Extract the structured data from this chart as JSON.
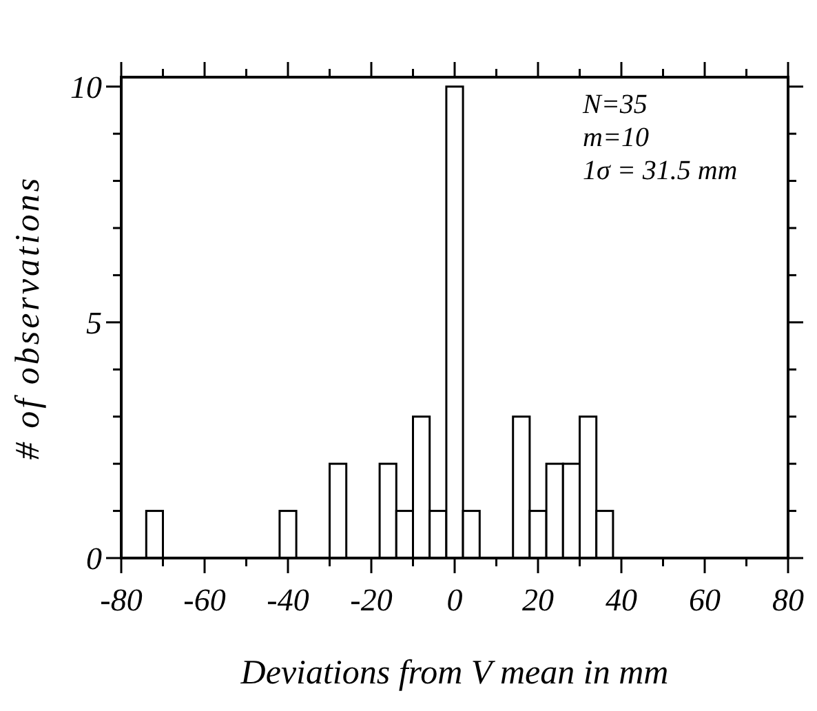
{
  "chart_data": {
    "type": "histogram",
    "xlabel": "Deviations from V mean in mm",
    "ylabel": "# of observations",
    "annotations": [
      "N=35",
      "m=10",
      "1σ = 31.5 mm"
    ],
    "bins": [
      -74,
      -70,
      -66,
      -62,
      -58,
      -54,
      -50,
      -46,
      -42,
      -38,
      -34,
      -30,
      -26,
      -22,
      -18,
      -14,
      -10,
      -6,
      -2,
      2,
      6,
      10,
      14,
      18,
      22,
      26,
      30,
      34,
      38
    ],
    "values": [
      1,
      0,
      0,
      0,
      0,
      0,
      0,
      0,
      1,
      0,
      0,
      2,
      0,
      0,
      2,
      1,
      3,
      1,
      10,
      1,
      0,
      0,
      3,
      1,
      2,
      2,
      3,
      1
    ],
    "color": "#ffffff",
    "xlim": [
      -80,
      80
    ],
    "xticks": [
      -80,
      {
        "value": -70,
        "label": null
      },
      -60,
      {
        "value": -50,
        "label": null
      },
      -40,
      {
        "value": -30,
        "label": null
      },
      -20,
      {
        "value": -10,
        "label": null
      },
      0,
      {
        "value": 10,
        "label": null
      },
      20,
      {
        "value": 30,
        "label": null
      },
      40,
      {
        "value": 50,
        "label": null
      },
      60,
      {
        "value": 70,
        "label": null
      },
      80
    ],
    "ylim": [
      0,
      10.2
    ],
    "yticks": [
      0,
      {
        "value": 1,
        "label": null
      },
      {
        "value": 2,
        "label": null
      },
      {
        "value": 3,
        "label": null
      },
      {
        "value": 4,
        "label": null
      },
      5,
      {
        "value": 6,
        "label": null
      },
      {
        "value": 7,
        "label": null
      },
      {
        "value": 8,
        "label": null
      },
      {
        "value": 9,
        "label": null
      },
      10
    ],
    "grid": false
  }
}
